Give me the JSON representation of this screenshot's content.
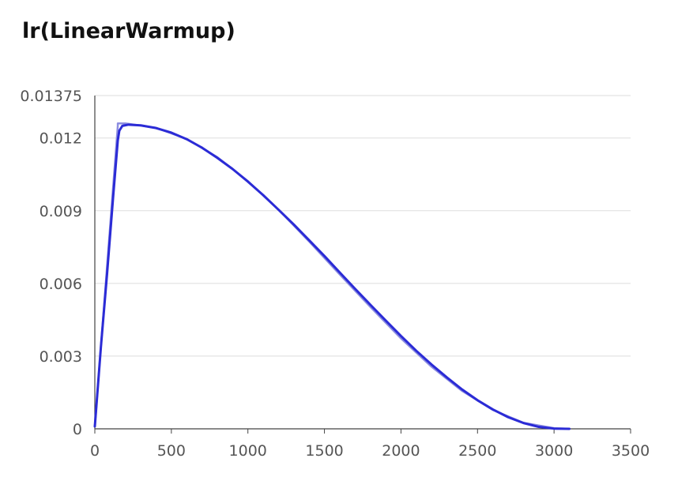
{
  "chart_data": {
    "type": "line",
    "title": "lr(LinearWarmup)",
    "xlabel": "",
    "ylabel": "",
    "xlim": [
      0,
      3500
    ],
    "ylim": [
      0,
      0.01375
    ],
    "x_ticks": [
      "0",
      "500",
      "1000",
      "1500",
      "2000",
      "2500",
      "3000",
      "3500"
    ],
    "x_tick_values": [
      0,
      500,
      1000,
      1500,
      2000,
      2500,
      3000,
      3500
    ],
    "y_ticks": [
      "0",
      "0.003",
      "0.006",
      "0.009",
      "0.012",
      "0.01375"
    ],
    "y_tick_values": [
      0,
      0.003,
      0.006,
      0.009,
      0.012,
      0.01375
    ],
    "grid": "horizontal",
    "series": [
      {
        "color": "#8d8ee0",
        "style": "faint",
        "x": [
          0,
          150,
          150,
          200,
          400,
          600,
          800,
          1000,
          1200,
          1400,
          1600,
          1800,
          2000,
          2200,
          2400,
          2600,
          2800,
          3000,
          3100
        ],
        "y": [
          0.0001,
          0.0125,
          0.0126,
          0.0126,
          0.01242,
          0.01196,
          0.01121,
          0.01022,
          0.00904,
          0.00773,
          0.00637,
          0.00503,
          0.00373,
          0.00256,
          0.00156,
          0.00078,
          0.00025,
          3e-05,
          0.0
        ]
      },
      {
        "color": "#2b2bd6",
        "style": "main",
        "x": [
          0,
          40,
          80,
          120,
          150,
          160,
          180,
          220,
          300,
          400,
          500,
          600,
          700,
          800,
          900,
          1000,
          1100,
          1200,
          1300,
          1400,
          1500,
          1600,
          1700,
          1800,
          1900,
          2000,
          2100,
          2200,
          2300,
          2400,
          2500,
          2600,
          2700,
          2800,
          2900,
          3000,
          3100
        ],
        "y": [
          0.0001,
          0.0034,
          0.0064,
          0.0096,
          0.0119,
          0.0123,
          0.0125,
          0.01255,
          0.01252,
          0.01241,
          0.01222,
          0.01195,
          0.0116,
          0.01118,
          0.01072,
          0.0102,
          0.00964,
          0.00904,
          0.00843,
          0.00778,
          0.00713,
          0.00645,
          0.00578,
          0.00512,
          0.00447,
          0.00383,
          0.00322,
          0.00265,
          0.00212,
          0.00162,
          0.00118,
          0.0008,
          0.00048,
          0.00024,
          8e-05,
          1e-05,
          0.0
        ]
      }
    ]
  }
}
